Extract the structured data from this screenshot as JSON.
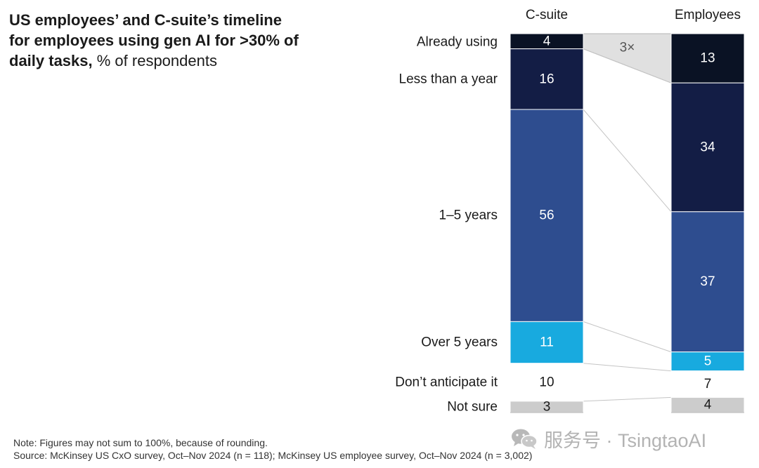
{
  "title": {
    "bold": "US employees’ and C-suite’s timeline for employees using gen AI for >30% of daily tasks,",
    "unit": " % of respondents"
  },
  "chart_data": {
    "type": "bar",
    "stacked": true,
    "columns": [
      "C-suite",
      "Employees"
    ],
    "categories": [
      "Already using",
      "Less than a year",
      "1–5 years",
      "Over 5 years",
      "Don’t anticipate it",
      "Not sure"
    ],
    "series": [
      {
        "name": "C-suite",
        "values": [
          4,
          16,
          56,
          11,
          10,
          3
        ]
      },
      {
        "name": "Employees",
        "values": [
          13,
          34,
          37,
          5,
          7,
          4
        ]
      }
    ],
    "colors": [
      "#0a1224",
      "#131d45",
      "#2e4d8f",
      "#18aadf",
      "#ffffff",
      "#cccccc"
    ],
    "text_colors": [
      "#ffffff",
      "#ffffff",
      "#ffffff",
      "#ffffff",
      "#1a1a1a",
      "#1a1a1a"
    ],
    "annotation": "3×",
    "annotation_color": "#e0e0e0"
  },
  "footer": {
    "note": "Note: Figures may not sum to 100%, because of rounding.",
    "source": "Source: McKinsey US CxO survey, Oct–Nov 2024 (n = 118); McKinsey US employee survey, Oct–Nov 2024 (n = 3,002)"
  },
  "watermark": {
    "text": "服务号 · TsingtaoAI",
    "icon": "wechat-icon"
  }
}
